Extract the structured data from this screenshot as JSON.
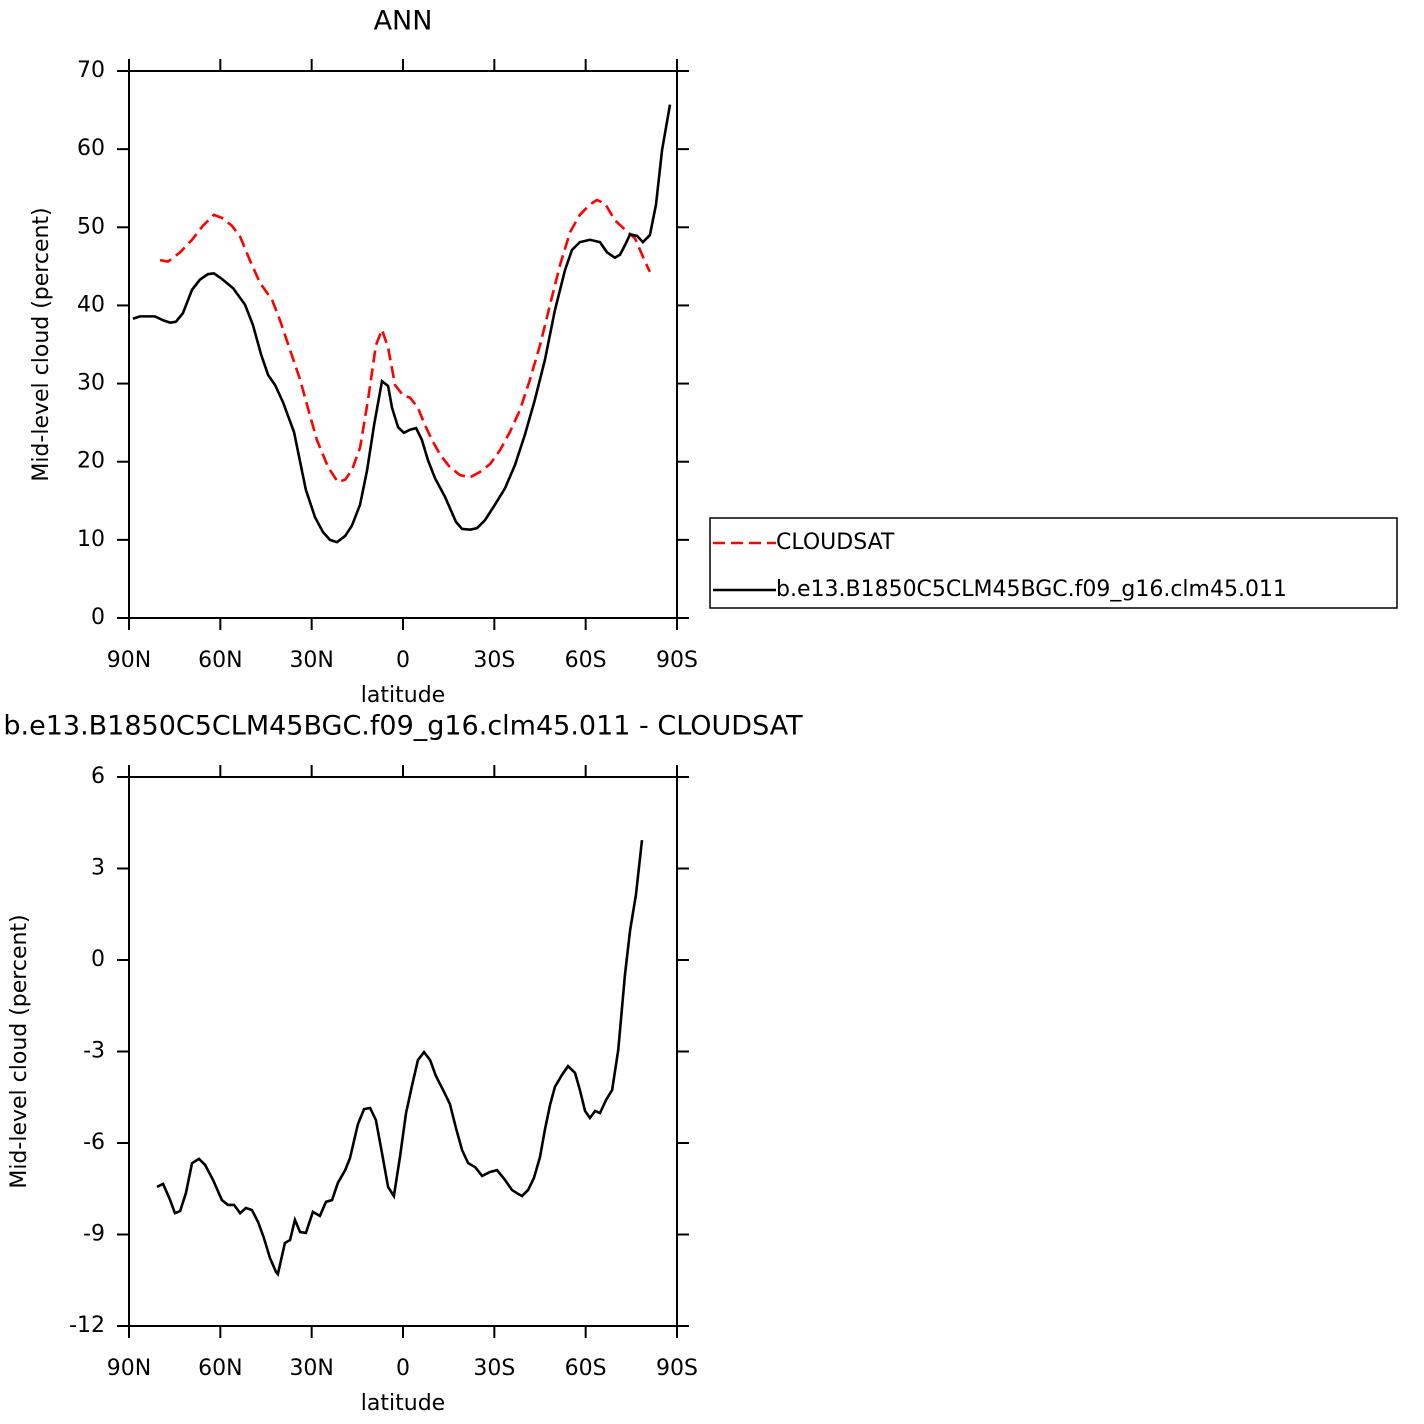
{
  "chart_data": [
    {
      "type": "line",
      "title": "ANN",
      "xlabel": "latitude",
      "ylabel": "Mid-level cloud (percent)",
      "xlim": [
        90,
        -90
      ],
      "xticks": [
        {
          "value": 90,
          "label": "90N"
        },
        {
          "value": 60,
          "label": "60N"
        },
        {
          "value": 30,
          "label": "30N"
        },
        0,
        {
          "value": -30,
          "label": "30S"
        },
        {
          "value": -60,
          "label": "60S"
        },
        {
          "value": -90,
          "label": "90S"
        }
      ],
      "ylim": [
        0,
        70
      ],
      "yticks": [
        0,
        10,
        20,
        30,
        40,
        50,
        60,
        70
      ],
      "legend": "outside-right",
      "series": [
        {
          "name": "CLOUDSAT",
          "color": "#ff0000",
          "dash": "dashed",
          "x": [
            79.8,
            77.2,
            73.2,
            69.3,
            65.7,
            62.1,
            59.5,
            56.2,
            53.5,
            50.3,
            47.0,
            43.0,
            40.4,
            37.1,
            33.8,
            30.9,
            28.3,
            24.6,
            21.4,
            19.0,
            16.8,
            14.1,
            11.5,
            8.9,
            6.9,
            4.9,
            2.6,
            0,
            -2.3,
            -4.9,
            -7.2,
            -9.5,
            -12.2,
            -15.4,
            -18.7,
            -22.0,
            -25.3,
            -28.6,
            -31.9,
            -35.1,
            -38.4,
            -41.7,
            -45.0,
            -48.3,
            -51.6,
            -54.9,
            -58.1,
            -61.4,
            -63.7,
            -66.4,
            -69.6,
            -72.9,
            -76.2,
            -79.5,
            -81.1
          ],
          "values": [
            45.8,
            45.6,
            46.8,
            48.4,
            50.2,
            51.6,
            51.2,
            50.2,
            48.8,
            45.8,
            42.9,
            40.7,
            38.1,
            34.3,
            30.5,
            26.4,
            22.8,
            19.3,
            17.4,
            17.7,
            18.9,
            21.8,
            27.9,
            34.9,
            36.9,
            34.6,
            29.8,
            28.5,
            28.2,
            26.9,
            24.7,
            22.8,
            20.9,
            19.3,
            18.3,
            18.0,
            18.7,
            19.7,
            21.5,
            23.8,
            26.6,
            30.5,
            34.9,
            40.1,
            45.2,
            49.4,
            51.6,
            52.9,
            53.5,
            53.0,
            50.9,
            49.7,
            48.6,
            45.6,
            44.3
          ]
        },
        {
          "name": "b.e13.B1850C5CLM45BGC.f09_g16.clm45.011",
          "color": "#000000",
          "dash": "solid",
          "x": [
            88.7,
            86.4,
            81.5,
            78.8,
            76.5,
            74.6,
            72.3,
            69.3,
            66.7,
            64.1,
            62.1,
            59.5,
            55.8,
            51.9,
            49.3,
            46.6,
            44.3,
            42.0,
            39.4,
            35.8,
            33.8,
            31.9,
            28.9,
            26.3,
            24.0,
            21.7,
            19.0,
            16.8,
            14.1,
            11.8,
            9.5,
            6.9,
            4.9,
            3.6,
            1.6,
            -0.3,
            -2.3,
            -4.3,
            -6.2,
            -8.2,
            -10.5,
            -13.8,
            -17.4,
            -19.4,
            -22.0,
            -24.3,
            -26.9,
            -30.2,
            -33.5,
            -36.8,
            -40.0,
            -43.3,
            -46.6,
            -49.9,
            -53.2,
            -55.5,
            -58.1,
            -61.4,
            -64.7,
            -67.0,
            -69.6,
            -71.3,
            -72.9,
            -74.6,
            -76.9,
            -78.8,
            -81.1,
            -83.1,
            -85.1,
            -87.7
          ],
          "values": [
            38.3,
            38.6,
            38.6,
            38.1,
            37.8,
            37.9,
            39.0,
            42.0,
            43.3,
            44.0,
            44.1,
            43.4,
            42.2,
            40.1,
            37.5,
            33.7,
            31.1,
            29.8,
            27.6,
            23.8,
            20.0,
            16.4,
            12.9,
            11.0,
            10.0,
            9.7,
            10.5,
            11.8,
            14.5,
            18.9,
            24.7,
            30.3,
            29.7,
            26.9,
            24.4,
            23.7,
            24.1,
            24.3,
            22.8,
            20.2,
            17.9,
            15.5,
            12.3,
            11.4,
            11.3,
            11.5,
            12.5,
            14.5,
            16.6,
            19.6,
            23.4,
            27.9,
            33.0,
            39.4,
            44.5,
            47.1,
            48.1,
            48.4,
            48.1,
            46.8,
            46.1,
            46.5,
            47.7,
            49.1,
            48.9,
            48.1,
            49.0,
            52.9,
            59.9,
            65.7
          ]
        }
      ]
    },
    {
      "type": "line",
      "title": "b.e13.B1850C5CLM45BGC.f09_g16.clm45.011 - CLOUDSAT",
      "xlabel": "latitude",
      "ylabel": "Mid-level cloud (percent)",
      "xlim": [
        90,
        -90
      ],
      "xticks": [
        {
          "value": 90,
          "label": "90N"
        },
        {
          "value": 60,
          "label": "60N"
        },
        {
          "value": 30,
          "label": "30N"
        },
        0,
        {
          "value": -30,
          "label": "30S"
        },
        {
          "value": -60,
          "label": "60S"
        },
        {
          "value": -90,
          "label": "90S"
        }
      ],
      "ylim": [
        -12,
        6
      ],
      "yticks": [
        -12,
        -9,
        -6,
        -3,
        0,
        3,
        6
      ],
      "series": [
        {
          "color": "#000000",
          "dash": "solid",
          "x": [
            80.8,
            78.8,
            76.5,
            74.9,
            73.2,
            71.3,
            69.3,
            67.0,
            65.0,
            62.4,
            59.5,
            57.5,
            55.5,
            53.5,
            51.6,
            49.6,
            47.6,
            45.7,
            43.7,
            41.7,
            41.1,
            38.8,
            37.1,
            35.5,
            33.8,
            31.9,
            29.6,
            27.3,
            25.3,
            23.3,
            21.4,
            19.0,
            17.4,
            14.8,
            12.8,
            10.8,
            8.9,
            6.9,
            4.9,
            3.0,
            1.0,
            -1.0,
            -3.0,
            -4.9,
            -6.9,
            -8.9,
            -10.8,
            -13.5,
            -15.4,
            -17.4,
            -19.4,
            -21.4,
            -23.7,
            -26.0,
            -28.6,
            -30.9,
            -33.5,
            -35.8,
            -37.8,
            -39.1,
            -41.1,
            -43.0,
            -45.0,
            -46.6,
            -48.3,
            -49.9,
            -52.2,
            -54.2,
            -56.5,
            -58.1,
            -59.8,
            -61.4,
            -63.1,
            -64.7,
            -66.7,
            -68.7,
            -70.7,
            -72.9,
            -74.6,
            -76.5,
            -78.5
          ],
          "values": [
            -7.44,
            -7.34,
            -7.87,
            -8.3,
            -8.23,
            -7.64,
            -6.66,
            -6.52,
            -6.72,
            -7.21,
            -7.87,
            -8.03,
            -8.03,
            -8.3,
            -8.13,
            -8.2,
            -8.59,
            -9.11,
            -9.77,
            -10.23,
            -10.3,
            -9.28,
            -9.18,
            -8.52,
            -8.92,
            -8.95,
            -8.26,
            -8.39,
            -7.93,
            -7.87,
            -7.31,
            -6.89,
            -6.49,
            -5.38,
            -4.89,
            -4.85,
            -5.25,
            -6.33,
            -7.44,
            -7.74,
            -6.46,
            -5.02,
            -4.1,
            -3.28,
            -3.02,
            -3.28,
            -3.8,
            -4.33,
            -4.72,
            -5.51,
            -6.23,
            -6.66,
            -6.79,
            -7.08,
            -6.95,
            -6.89,
            -7.21,
            -7.54,
            -7.67,
            -7.74,
            -7.54,
            -7.15,
            -6.46,
            -5.57,
            -4.75,
            -4.16,
            -3.77,
            -3.48,
            -3.7,
            -4.26,
            -4.95,
            -5.18,
            -4.95,
            -5.02,
            -4.59,
            -4.26,
            -2.95,
            -0.49,
            0.98,
            2.13,
            3.93
          ]
        }
      ]
    }
  ]
}
